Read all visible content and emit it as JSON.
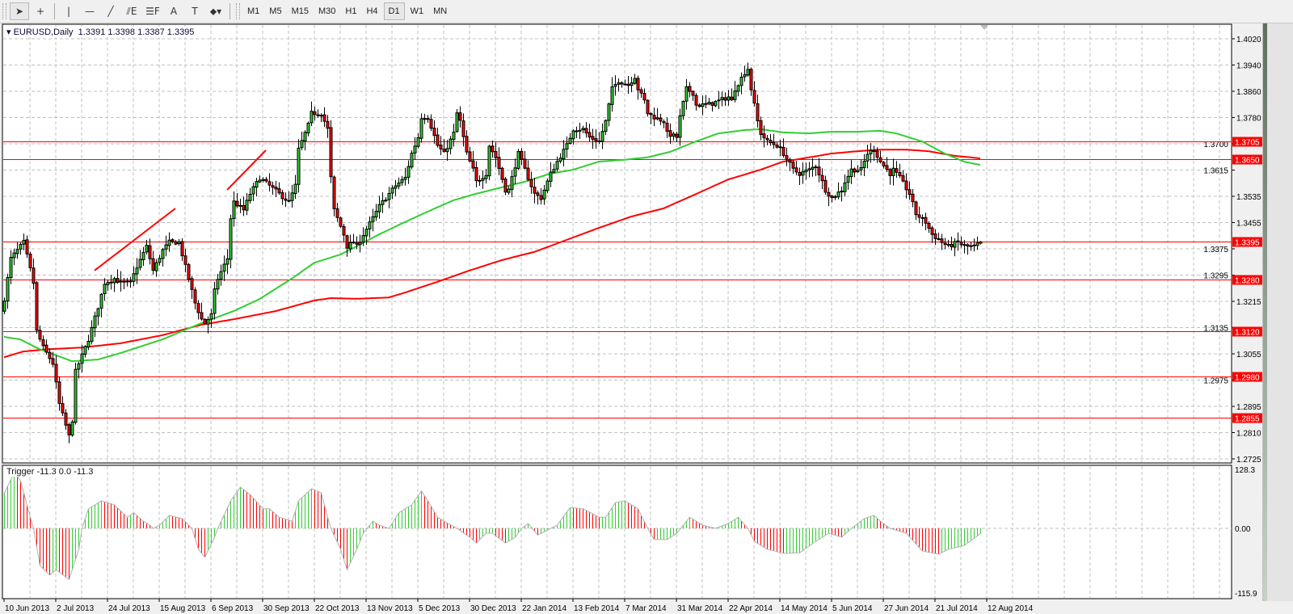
{
  "toolbar": {
    "tools": [
      {
        "name": "cursor-tool",
        "glyph": "➤",
        "active": true
      },
      {
        "name": "crosshair-tool",
        "glyph": "+"
      },
      {
        "name": "vertical-line-tool",
        "glyph": "|"
      },
      {
        "name": "horizontal-line-tool",
        "glyph": "—"
      },
      {
        "name": "trendline-tool",
        "glyph": "╱"
      },
      {
        "name": "equidistant-channel-tool",
        "glyph": "⫽E"
      },
      {
        "name": "fibonacci-tool",
        "glyph": "☰F"
      },
      {
        "name": "text-tool",
        "glyph": "A"
      },
      {
        "name": "text-label-tool",
        "glyph": "T"
      },
      {
        "name": "arrows-tool",
        "glyph": "⬥▾"
      }
    ],
    "timeframes": [
      "M1",
      "M5",
      "M15",
      "M30",
      "H1",
      "H4",
      "D1",
      "W1",
      "MN"
    ],
    "active_timeframe": "D1"
  },
  "main": {
    "symbol_label": "EURUSD,Daily",
    "ohlc_label": "1.3391 1.3398 1.3387 1.3395"
  },
  "indicator": {
    "label": "Trigger -11.3 0.0 -11.3",
    "axis_labels": [
      "128.3",
      "0.00",
      "-115.9"
    ]
  },
  "colors": {
    "up": "#32cd32",
    "down": "#ff0000",
    "line_red": "#ff0000",
    "ma_fast": "#32cd32",
    "ma_slow": "#ff0000",
    "grid": "#c0c0c0",
    "text": "#000000"
  },
  "chart_data": {
    "type": "candlestick",
    "title": "EURUSD,Daily",
    "y_ticks": [
      "1.4020",
      "1.3940",
      "1.3860",
      "1.3780",
      "1.3700",
      "1.3615",
      "1.3535",
      "1.3455",
      "1.3375",
      "1.3295",
      "1.3215",
      "1.3135",
      "1.3055",
      "1.2975",
      "1.2895",
      "1.2810",
      "1.2725"
    ],
    "ylim": [
      1.2725,
      1.402
    ],
    "x_labels": [
      "10 Jun 2013",
      "2 Jul 2013",
      "24 Jul 2013",
      "15 Aug 2013",
      "6 Sep 2013",
      "30 Sep 2013",
      "22 Oct 2013",
      "13 Nov 2013",
      "5 Dec 2013",
      "30 Dec 2013",
      "22 Jan 2014",
      "13 Feb 2014",
      "7 Mar 2014",
      "31 Mar 2014",
      "22 Apr 2014",
      "14 May 2014",
      "5 Jun 2014",
      "27 Jun 2014",
      "21 Jul 2014",
      "12 Aug 2014"
    ],
    "bars_per_label": 16,
    "bar_count": 303,
    "last_bar": {
      "open": 1.3391,
      "high": 1.3398,
      "low": 1.3387,
      "close": 1.3395
    },
    "close_anchors": [
      [
        0,
        1.322
      ],
      [
        2,
        1.3344
      ],
      [
        6,
        1.3394
      ],
      [
        9,
        1.3269
      ],
      [
        10,
        1.312
      ],
      [
        12,
        1.307
      ],
      [
        15,
        1.3021
      ],
      [
        17,
        1.2896
      ],
      [
        20,
        1.2797
      ],
      [
        21,
        1.2847
      ],
      [
        22,
        1.2996
      ],
      [
        24,
        1.3045
      ],
      [
        26,
        1.3095
      ],
      [
        29,
        1.3195
      ],
      [
        31,
        1.3269
      ],
      [
        34,
        1.3282
      ],
      [
        36,
        1.3269
      ],
      [
        39,
        1.3269
      ],
      [
        41,
        1.3319
      ],
      [
        44,
        1.3381
      ],
      [
        46,
        1.3307
      ],
      [
        49,
        1.3369
      ],
      [
        51,
        1.3394
      ],
      [
        54,
        1.3394
      ],
      [
        56,
        1.3319
      ],
      [
        59,
        1.3207
      ],
      [
        61,
        1.3157
      ],
      [
        62,
        1.3145
      ],
      [
        64,
        1.317
      ],
      [
        65,
        1.3244
      ],
      [
        66,
        1.3282
      ],
      [
        69,
        1.3344
      ],
      [
        70,
        1.3468
      ],
      [
        71,
        1.3518
      ],
      [
        74,
        1.3493
      ],
      [
        76,
        1.3543
      ],
      [
        79,
        1.3592
      ],
      [
        82,
        1.3568
      ],
      [
        85,
        1.3543
      ],
      [
        88,
        1.3518
      ],
      [
        90,
        1.3568
      ],
      [
        91,
        1.3679
      ],
      [
        94,
        1.3754
      ],
      [
        95,
        1.3791
      ],
      [
        98,
        1.3791
      ],
      [
        100,
        1.3742
      ],
      [
        101,
        1.3592
      ],
      [
        102,
        1.3493
      ],
      [
        105,
        1.3418
      ],
      [
        106,
        1.3381
      ],
      [
        108,
        1.3394
      ],
      [
        109,
        1.3381
      ],
      [
        111,
        1.3418
      ],
      [
        114,
        1.3468
      ],
      [
        116,
        1.3505
      ],
      [
        119,
        1.3543
      ],
      [
        121,
        1.3568
      ],
      [
        124,
        1.3592
      ],
      [
        126,
        1.3667
      ],
      [
        128,
        1.3717
      ],
      [
        129,
        1.3779
      ],
      [
        131,
        1.3779
      ],
      [
        134,
        1.3692
      ],
      [
        136,
        1.3667
      ],
      [
        139,
        1.3729
      ],
      [
        140,
        1.3791
      ],
      [
        141,
        1.3766
      ],
      [
        143,
        1.3667
      ],
      [
        145,
        1.3617
      ],
      [
        146,
        1.358
      ],
      [
        149,
        1.3605
      ],
      [
        150,
        1.3692
      ],
      [
        152,
        1.3655
      ],
      [
        155,
        1.3555
      ],
      [
        156,
        1.3555
      ],
      [
        159,
        1.3667
      ],
      [
        161,
        1.3617
      ],
      [
        164,
        1.3543
      ],
      [
        166,
        1.353
      ],
      [
        169,
        1.3605
      ],
      [
        171,
        1.3642
      ],
      [
        174,
        1.3692
      ],
      [
        176,
        1.3742
      ],
      [
        179,
        1.3742
      ],
      [
        181,
        1.3717
      ],
      [
        184,
        1.3704
      ],
      [
        186,
        1.3766
      ],
      [
        188,
        1.3866
      ],
      [
        190,
        1.3891
      ],
      [
        193,
        1.3878
      ],
      [
        195,
        1.3903
      ],
      [
        196,
        1.3866
      ],
      [
        198,
        1.3829
      ],
      [
        199,
        1.3791
      ],
      [
        201,
        1.3779
      ],
      [
        204,
        1.3766
      ],
      [
        205,
        1.3729
      ],
      [
        208,
        1.3717
      ],
      [
        209,
        1.3779
      ],
      [
        211,
        1.3866
      ],
      [
        213,
        1.3853
      ],
      [
        214,
        1.3816
      ],
      [
        216,
        1.3816
      ],
      [
        219,
        1.3821
      ],
      [
        221,
        1.3829
      ],
      [
        224,
        1.3841
      ],
      [
        225,
        1.3829
      ],
      [
        226,
        1.3866
      ],
      [
        229,
        1.3916
      ],
      [
        230,
        1.3928
      ],
      [
        231,
        1.3866
      ],
      [
        233,
        1.3766
      ],
      [
        234,
        1.3729
      ],
      [
        236,
        1.3704
      ],
      [
        239,
        1.3692
      ],
      [
        241,
        1.3667
      ],
      [
        244,
        1.3617
      ],
      [
        246,
        1.3605
      ],
      [
        249,
        1.3617
      ],
      [
        251,
        1.363
      ],
      [
        253,
        1.358
      ],
      [
        254,
        1.3555
      ],
      [
        256,
        1.353
      ],
      [
        259,
        1.3555
      ],
      [
        260,
        1.358
      ],
      [
        262,
        1.3617
      ],
      [
        265,
        1.3617
      ],
      [
        267,
        1.3667
      ],
      [
        269,
        1.3679
      ],
      [
        271,
        1.3642
      ],
      [
        274,
        1.3605
      ],
      [
        275,
        1.3617
      ],
      [
        277,
        1.3592
      ],
      [
        280,
        1.3543
      ],
      [
        282,
        1.3481
      ],
      [
        285,
        1.3456
      ],
      [
        287,
        1.3418
      ],
      [
        290,
        1.3394
      ],
      [
        292,
        1.3381
      ],
      [
        295,
        1.3394
      ],
      [
        297,
        1.3381
      ],
      [
        300,
        1.3381
      ],
      [
        302,
        1.3395
      ]
    ],
    "ma_fast": [
      [
        0,
        1.3103
      ],
      [
        5,
        1.3095
      ],
      [
        11,
        1.3065
      ],
      [
        21,
        1.3028
      ],
      [
        29,
        1.3033
      ],
      [
        36,
        1.3053
      ],
      [
        49,
        1.3095
      ],
      [
        61,
        1.3145
      ],
      [
        71,
        1.3182
      ],
      [
        79,
        1.3219
      ],
      [
        89,
        1.3282
      ],
      [
        96,
        1.3331
      ],
      [
        104,
        1.3356
      ],
      [
        109,
        1.3381
      ],
      [
        116,
        1.3418
      ],
      [
        124,
        1.3456
      ],
      [
        131,
        1.3488
      ],
      [
        139,
        1.3523
      ],
      [
        146,
        1.3543
      ],
      [
        154,
        1.3563
      ],
      [
        161,
        1.358
      ],
      [
        169,
        1.3605
      ],
      [
        176,
        1.3617
      ],
      [
        184,
        1.3642
      ],
      [
        191,
        1.3647
      ],
      [
        199,
        1.3655
      ],
      [
        206,
        1.3672
      ],
      [
        214,
        1.3704
      ],
      [
        221,
        1.3729
      ],
      [
        229,
        1.3739
      ],
      [
        234,
        1.3742
      ],
      [
        241,
        1.3732
      ],
      [
        249,
        1.3729
      ],
      [
        256,
        1.3734
      ],
      [
        264,
        1.3734
      ],
      [
        271,
        1.3737
      ],
      [
        276,
        1.3729
      ],
      [
        284,
        1.3704
      ],
      [
        291,
        1.3667
      ],
      [
        297,
        1.3642
      ],
      [
        302,
        1.3632
      ]
    ],
    "ma_slow": [
      [
        0,
        1.304
      ],
      [
        6,
        1.3058
      ],
      [
        14,
        1.3065
      ],
      [
        24,
        1.307
      ],
      [
        36,
        1.3083
      ],
      [
        49,
        1.3108
      ],
      [
        61,
        1.314
      ],
      [
        71,
        1.3157
      ],
      [
        84,
        1.3182
      ],
      [
        96,
        1.3215
      ],
      [
        101,
        1.3222
      ],
      [
        109,
        1.322
      ],
      [
        119,
        1.3224
      ],
      [
        124,
        1.3239
      ],
      [
        134,
        1.3272
      ],
      [
        144,
        1.3307
      ],
      [
        154,
        1.3339
      ],
      [
        164,
        1.3364
      ],
      [
        174,
        1.3401
      ],
      [
        184,
        1.3438
      ],
      [
        194,
        1.3473
      ],
      [
        204,
        1.3498
      ],
      [
        214,
        1.3542
      ],
      [
        224,
        1.3587
      ],
      [
        234,
        1.3617
      ],
      [
        241,
        1.3642
      ],
      [
        249,
        1.3655
      ],
      [
        256,
        1.3667
      ],
      [
        264,
        1.3674
      ],
      [
        271,
        1.3679
      ],
      [
        279,
        1.3679
      ],
      [
        286,
        1.3674
      ],
      [
        294,
        1.366
      ],
      [
        302,
        1.3652
      ]
    ],
    "horizontal_levels": [
      "1.3705",
      "1.3650",
      "1.3395",
      "1.3280",
      "1.3120",
      "1.2980",
      "1.2855"
    ],
    "trendlines": [
      [
        [
          28,
          1.3307
        ],
        [
          53,
          1.3498
        ]
      ],
      [
        [
          69,
          1.3555
        ],
        [
          81,
          1.3677
        ]
      ]
    ],
    "indicator": {
      "name": "Trigger",
      "ylim": [
        -115.9,
        128.3
      ],
      "anchors": [
        [
          0,
          80
        ],
        [
          3,
          125
        ],
        [
          5,
          107
        ],
        [
          8,
          25
        ],
        [
          9,
          0
        ],
        [
          11,
          -84
        ],
        [
          14,
          -105
        ],
        [
          16,
          -93
        ],
        [
          20,
          -115
        ],
        [
          23,
          -47
        ],
        [
          24,
          0
        ],
        [
          26,
          44
        ],
        [
          30,
          62
        ],
        [
          34,
          53
        ],
        [
          38,
          25
        ],
        [
          40,
          35
        ],
        [
          43,
          16
        ],
        [
          45,
          7
        ],
        [
          46,
          0
        ],
        [
          48,
          7
        ],
        [
          51,
          29
        ],
        [
          55,
          22
        ],
        [
          58,
          0
        ],
        [
          60,
          -47
        ],
        [
          62,
          -65
        ],
        [
          65,
          -20
        ],
        [
          66,
          0
        ],
        [
          70,
          62
        ],
        [
          73,
          93
        ],
        [
          76,
          76
        ],
        [
          80,
          44
        ],
        [
          82,
          44
        ],
        [
          85,
          25
        ],
        [
          89,
          16
        ],
        [
          91,
          62
        ],
        [
          95,
          89
        ],
        [
          98,
          80
        ],
        [
          100,
          25
        ],
        [
          101,
          0
        ],
        [
          104,
          -47
        ],
        [
          106,
          -93
        ],
        [
          109,
          -47
        ],
        [
          111,
          -11
        ],
        [
          114,
          16
        ],
        [
          116,
          7
        ],
        [
          119,
          0
        ],
        [
          122,
          35
        ],
        [
          126,
          53
        ],
        [
          129,
          84
        ],
        [
          131,
          62
        ],
        [
          134,
          25
        ],
        [
          136,
          16
        ],
        [
          140,
          0
        ],
        [
          144,
          -20
        ],
        [
          146,
          -33
        ],
        [
          149,
          -11
        ],
        [
          151,
          -11
        ],
        [
          155,
          -33
        ],
        [
          158,
          -20
        ],
        [
          160,
          0
        ],
        [
          162,
          11
        ],
        [
          165,
          -15
        ],
        [
          169,
          0
        ],
        [
          171,
          7
        ],
        [
          175,
          47
        ],
        [
          179,
          44
        ],
        [
          184,
          25
        ],
        [
          186,
          25
        ],
        [
          189,
          58
        ],
        [
          192,
          62
        ],
        [
          196,
          44
        ],
        [
          199,
          0
        ],
        [
          201,
          -25
        ],
        [
          205,
          -25
        ],
        [
          208,
          -11
        ],
        [
          210,
          7
        ],
        [
          212,
          25
        ],
        [
          216,
          7
        ],
        [
          220,
          0
        ],
        [
          224,
          11
        ],
        [
          227,
          25
        ],
        [
          230,
          0
        ],
        [
          232,
          -29
        ],
        [
          236,
          -47
        ],
        [
          241,
          -56
        ],
        [
          246,
          -55
        ],
        [
          251,
          -29
        ],
        [
          255,
          -11
        ],
        [
          259,
          -20
        ],
        [
          262,
          0
        ],
        [
          266,
          22
        ],
        [
          269,
          29
        ],
        [
          271,
          16
        ],
        [
          274,
          0
        ],
        [
          279,
          -11
        ],
        [
          284,
          -51
        ],
        [
          289,
          -58
        ],
        [
          292,
          -47
        ],
        [
          297,
          -38
        ],
        [
          302,
          -11.3
        ]
      ]
    }
  }
}
